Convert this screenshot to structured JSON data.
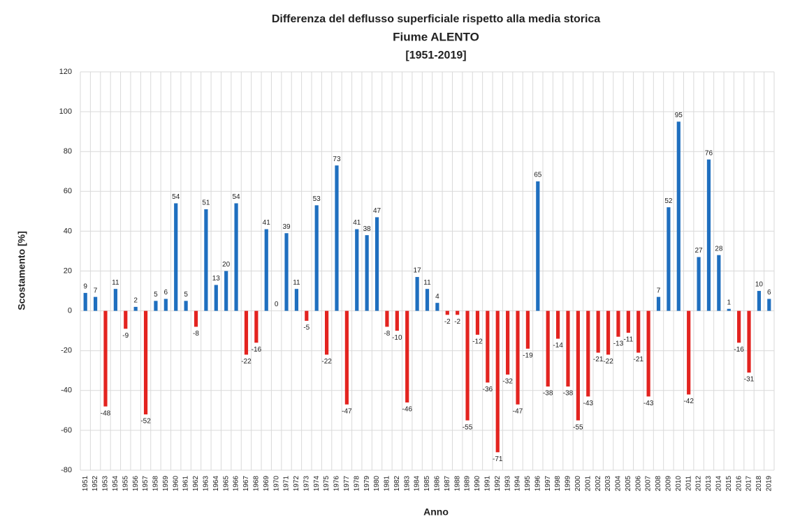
{
  "chart_data": {
    "type": "bar",
    "title": "Differenza del deflusso superficiale rispetto alla media storica",
    "subtitle": "Fiume ALENTO",
    "period": "[1951-2019]",
    "x_label": "Anno",
    "y_label": "Scostamento [%]",
    "categories": [
      "1951",
      "1952",
      "1953",
      "1954",
      "1955",
      "1956",
      "1957",
      "1958",
      "1959",
      "1960",
      "1961",
      "1962",
      "1963",
      "1964",
      "1965",
      "1966",
      "1967",
      "1968",
      "1969",
      "1970",
      "1971",
      "1972",
      "1973",
      "1974",
      "1975",
      "1976",
      "1977",
      "1978",
      "1979",
      "1980",
      "1981",
      "1982",
      "1983",
      "1984",
      "1985",
      "1986",
      "1987",
      "1988",
      "1989",
      "1990",
      "1991",
      "1992",
      "1993",
      "1994",
      "1995",
      "1996",
      "1997",
      "1998",
      "1999",
      "2000",
      "2001",
      "2002",
      "2003",
      "2004",
      "2005",
      "2006",
      "2007",
      "2008",
      "2009",
      "2010",
      "2011",
      "2012",
      "2013",
      "2014",
      "2015",
      "2016",
      "2017",
      "2018",
      "2019"
    ],
    "values": [
      9,
      7,
      -48,
      11,
      -9,
      2,
      -52,
      5,
      6,
      54,
      5,
      -8,
      51,
      13,
      20,
      54,
      -22,
      -16,
      41,
      0,
      39,
      11,
      -5,
      53,
      -22,
      73,
      -47,
      41,
      38,
      47,
      -8,
      -10,
      -46,
      17,
      11,
      4,
      -2,
      -2,
      -55,
      -12,
      -36,
      -71,
      -32,
      -47,
      -19,
      65,
      -38,
      -14,
      -38,
      -55,
      -43,
      -21,
      -22,
      -13,
      -11,
      -21,
      -43,
      7,
      52,
      95,
      -42,
      27,
      76,
      28,
      1,
      -16,
      -31,
      10,
      6
    ],
    "positive_color": "#1f6fbf",
    "negative_color": "#e3231f",
    "subtitle_color": "#2e5fa8",
    "ylim": [
      -80,
      120
    ],
    "yticks": [
      -80,
      -60,
      -40,
      -20,
      0,
      20,
      40,
      60,
      80,
      100,
      120
    ],
    "grid": true
  }
}
